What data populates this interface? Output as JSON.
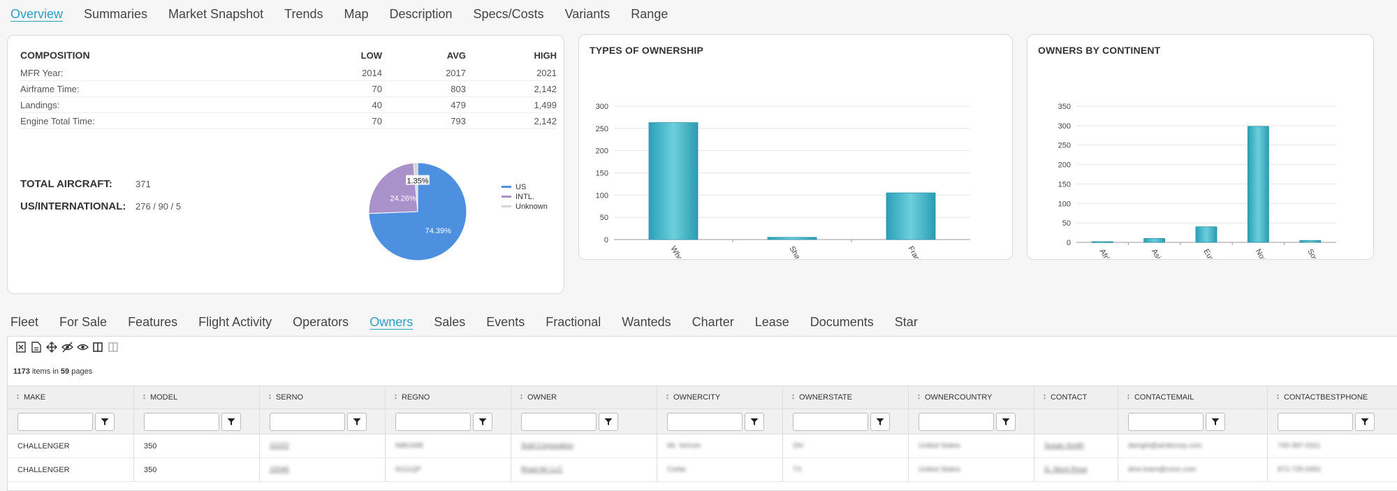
{
  "top_tabs": [
    {
      "label": "Overview",
      "active": true
    },
    {
      "label": "Summaries"
    },
    {
      "label": "Market Snapshot"
    },
    {
      "label": "Trends"
    },
    {
      "label": "Map"
    },
    {
      "label": "Description"
    },
    {
      "label": "Specs/Costs"
    },
    {
      "label": "Variants"
    },
    {
      "label": "Range"
    }
  ],
  "composition": {
    "title": "COMPOSITION",
    "headers": {
      "low": "LOW",
      "avg": "AVG",
      "high": "HIGH"
    },
    "rows": [
      {
        "label": "MFR Year:",
        "low": "2014",
        "avg": "2017",
        "high": "2021"
      },
      {
        "label": "Airframe Time:",
        "low": "70",
        "avg": "803",
        "high": "2,142"
      },
      {
        "label": "Landings:",
        "low": "40",
        "avg": "479",
        "high": "1,499"
      },
      {
        "label": "Engine Total Time:",
        "low": "70",
        "avg": "793",
        "high": "2,142"
      }
    ],
    "total_label": "TOTAL AIRCRAFT:",
    "total_value": "371",
    "usintl_label": "US/INTERNATIONAL:",
    "usintl_value": "276 / 90 / 5"
  },
  "ownership": {
    "title": "TYPES OF OWNERSHIP"
  },
  "continent": {
    "title": "OWNERS BY CONTINENT"
  },
  "chart_data": [
    {
      "type": "pie",
      "labels": [
        "US",
        "INTL.",
        "Unknown"
      ],
      "values": [
        74.39,
        24.26,
        1.35
      ],
      "data_labels": [
        "74.39%",
        "24.26%",
        "1.35%"
      ],
      "colors": [
        "#4d90e0",
        "#a991c9",
        "#d4d4d4"
      ],
      "legend": "right"
    },
    {
      "type": "bar",
      "title": "TYPES OF OWNERSHIP",
      "categories": [
        "Whole",
        "Shared",
        "Fractional"
      ],
      "values": [
        263,
        5,
        105
      ],
      "ylim": [
        0,
        300
      ],
      "yticks": [
        0,
        50,
        100,
        150,
        200,
        250,
        300
      ],
      "grid": true
    },
    {
      "type": "bar",
      "title": "OWNERS BY CONTINENT",
      "categories": [
        "Africa",
        "Asia",
        "Europe",
        "North A...",
        "South A..."
      ],
      "values": [
        2,
        10,
        40,
        298,
        5
      ],
      "ylim": [
        0,
        350
      ],
      "yticks": [
        0,
        50,
        100,
        150,
        200,
        250,
        300,
        350
      ],
      "grid": true
    }
  ],
  "bottom_tabs": [
    {
      "label": "Fleet"
    },
    {
      "label": "For Sale"
    },
    {
      "label": "Features"
    },
    {
      "label": "Flight Activity"
    },
    {
      "label": "Operators"
    },
    {
      "label": "Owners",
      "active": true
    },
    {
      "label": "Sales"
    },
    {
      "label": "Events"
    },
    {
      "label": "Fractional"
    },
    {
      "label": "Wanteds"
    },
    {
      "label": "Charter"
    },
    {
      "label": "Lease"
    },
    {
      "label": "Documents"
    },
    {
      "label": "Star"
    }
  ],
  "toolbar_icons": [
    "excel-icon",
    "pdf-icon",
    "move-icon",
    "hide-icon",
    "show-icon",
    "columns-icon",
    "columns-light-icon"
  ],
  "grid": {
    "count": "1173",
    "items_in_text": "items in",
    "pages": "59",
    "pages_text": "pages",
    "columns": [
      {
        "label": "MAKE",
        "filter": true
      },
      {
        "label": "MODEL",
        "filter": true
      },
      {
        "label": "SERNO",
        "filter": true
      },
      {
        "label": "REGNO",
        "filter": true
      },
      {
        "label": "OWNER",
        "filter": true
      },
      {
        "label": "OWNERCITY",
        "filter": true
      },
      {
        "label": "OWNERSTATE",
        "filter": true
      },
      {
        "label": "OWNERCOUNTRY",
        "filter": true
      },
      {
        "label": "CONTACT",
        "filter": false
      },
      {
        "label": "CONTACTEMAIL",
        "filter": true
      },
      {
        "label": "CONTACTBESTPHONE",
        "filter": true
      }
    ],
    "rows": [
      {
        "make": "CHALLENGER",
        "model": "350"
      },
      {
        "make": "CHALLENGER",
        "model": "350"
      }
    ]
  }
}
